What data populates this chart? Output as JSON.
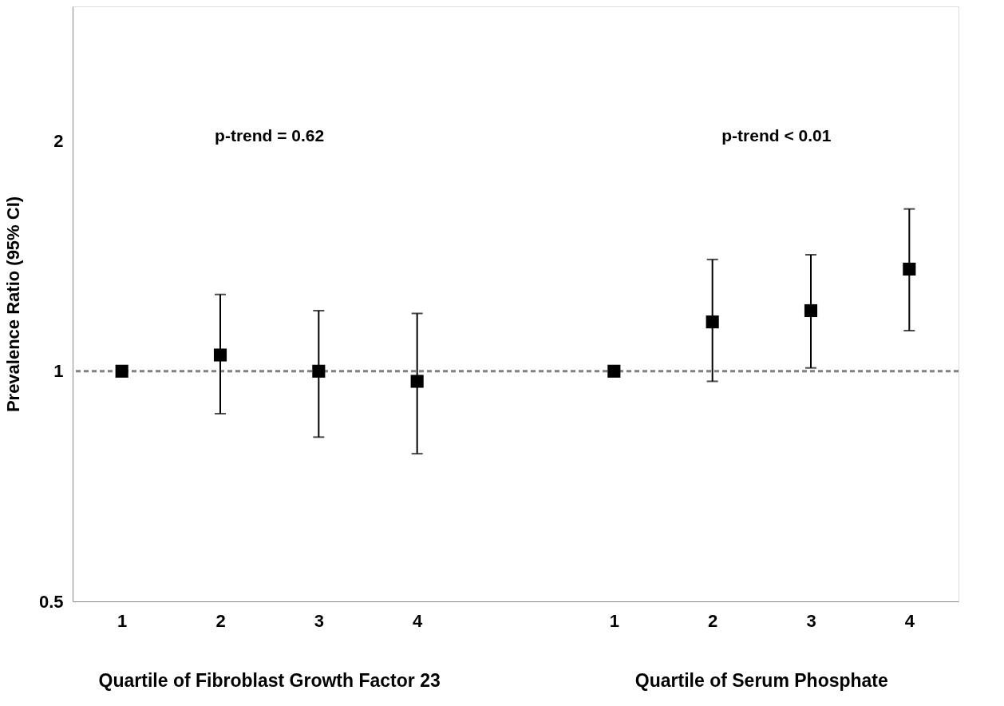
{
  "chart_data": {
    "type": "scatter",
    "ylabel": "Prevalence Ratio (95% CI)",
    "categories": [
      "1",
      "2",
      "3",
      "4",
      null,
      "1",
      "2",
      "3",
      "4"
    ],
    "series": [
      {
        "color": "#000000",
        "values": [
          1.0,
          1.05,
          1.0,
          0.97,
          null,
          1.0,
          1.16,
          1.2,
          1.36
        ],
        "errors": [
          null,
          [
            0.88,
            1.26
          ],
          [
            0.82,
            1.2
          ],
          [
            0.78,
            1.19
          ],
          null,
          null,
          [
            0.97,
            1.4
          ],
          [
            1.01,
            1.42
          ],
          [
            1.13,
            1.63
          ]
        ]
      }
    ],
    "log": true,
    "ylim": [
      0.5,
      3
    ],
    "yticks": [
      0.5,
      1,
      2
    ],
    "grid": false,
    "marker": "square",
    "ref_lines": [
      {
        "axis": "y",
        "value": 1,
        "color": "#808080",
        "line_style": "dashed"
      }
    ],
    "annotations": [
      "p-trend = 0.62",
      "p-trend < 0.01",
      "Quartile of Fibroblast Growth Factor 23",
      "Quartile of Serum Phosphate"
    ]
  }
}
